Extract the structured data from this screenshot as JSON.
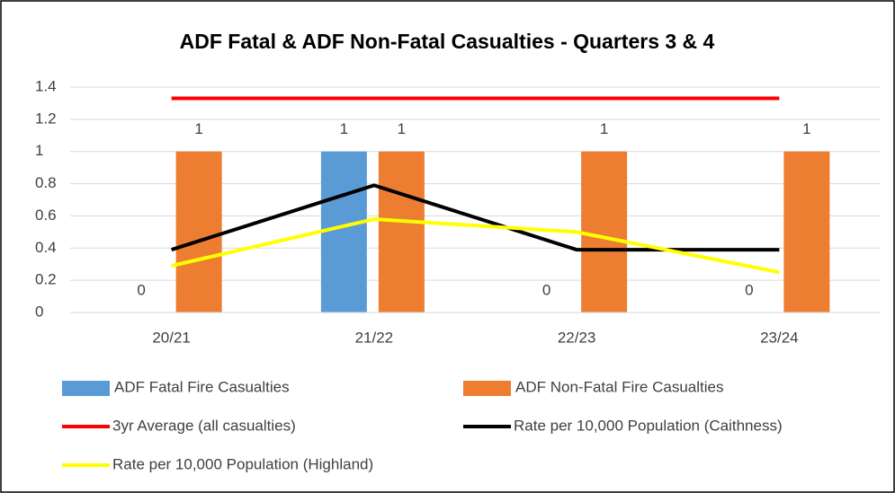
{
  "chart_data": {
    "type": "bar",
    "title": "ADF Fatal & ADF Non-Fatal Casualties - Quarters 3 & 4",
    "categories": [
      "20/21",
      "21/22",
      "22/23",
      "23/24"
    ],
    "series": [
      {
        "name": "ADF Fatal Fire Casualties",
        "type": "bar",
        "color": "#5b9bd5",
        "values": [
          0,
          1,
          0,
          0
        ]
      },
      {
        "name": "ADF Non-Fatal Fire Casualties",
        "type": "bar",
        "color": "#ed7d31",
        "values": [
          1,
          1,
          1,
          1
        ]
      },
      {
        "name": "3yr Average (all casualties)",
        "type": "line",
        "color": "#ff0000",
        "values": [
          1.33,
          1.33,
          1.33,
          1.33
        ]
      },
      {
        "name": "Rate per 10,000 Population (Caithness)",
        "type": "line",
        "color": "#000000",
        "values": [
          0.39,
          0.79,
          0.39,
          0.39
        ]
      },
      {
        "name": "Rate per 10,000 Population (Highland)",
        "type": "line",
        "color": "#ffff00",
        "values": [
          0.29,
          0.58,
          0.5,
          0.25
        ]
      }
    ],
    "ylim": [
      0,
      1.4
    ],
    "yticks": [
      0,
      0.2,
      0.4,
      0.6,
      0.8,
      1,
      1.2,
      1.4
    ],
    "grid": true,
    "legend": "bottom"
  }
}
